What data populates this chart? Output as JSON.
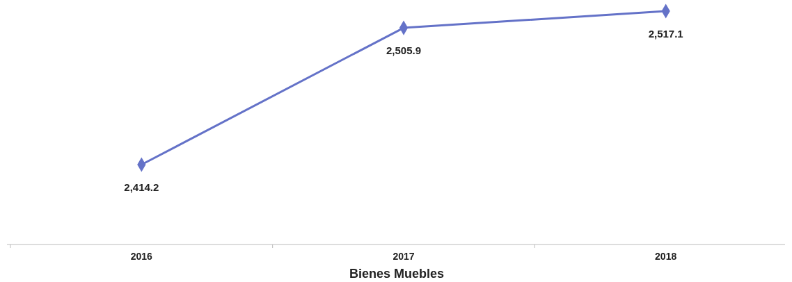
{
  "chart_data": {
    "type": "line",
    "xlabel": "Bienes Muebles",
    "categories": [
      "2016",
      "2017",
      "2018"
    ],
    "series": [
      {
        "color": "#6472c8",
        "values": [
          2414.2,
          2505.9,
          2517.1
        ],
        "value_labels": [
          "2,414.2",
          "2,505.9",
          "2,517.1"
        ]
      }
    ],
    "marker": "diamond",
    "line_style": "solid"
  }
}
